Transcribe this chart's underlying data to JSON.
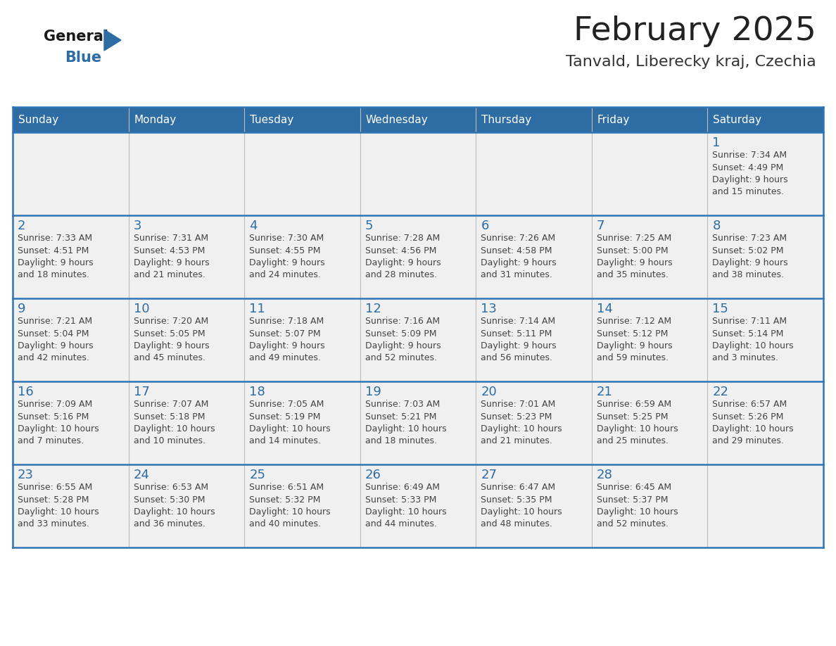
{
  "title": "February 2025",
  "subtitle": "Tanvald, Liberecky kraj, Czechia",
  "days_of_week": [
    "Sunday",
    "Monday",
    "Tuesday",
    "Wednesday",
    "Thursday",
    "Friday",
    "Saturday"
  ],
  "header_bg": "#2E6DA4",
  "header_text": "#FFFFFF",
  "cell_bg": "#F0F0F0",
  "day_number_color": "#2E6DA4",
  "text_color": "#444444",
  "line_color": "#2E75B6",
  "grid_line_color": "#BBBBBB",
  "logo_general_color": "#1a1a1a",
  "logo_blue_color": "#2E6DA4",
  "weeks": [
    {
      "days": [
        {
          "day": null,
          "info": null
        },
        {
          "day": null,
          "info": null
        },
        {
          "day": null,
          "info": null
        },
        {
          "day": null,
          "info": null
        },
        {
          "day": null,
          "info": null
        },
        {
          "day": null,
          "info": null
        },
        {
          "day": 1,
          "info": "Sunrise: 7:34 AM\nSunset: 4:49 PM\nDaylight: 9 hours\nand 15 minutes."
        }
      ]
    },
    {
      "days": [
        {
          "day": 2,
          "info": "Sunrise: 7:33 AM\nSunset: 4:51 PM\nDaylight: 9 hours\nand 18 minutes."
        },
        {
          "day": 3,
          "info": "Sunrise: 7:31 AM\nSunset: 4:53 PM\nDaylight: 9 hours\nand 21 minutes."
        },
        {
          "day": 4,
          "info": "Sunrise: 7:30 AM\nSunset: 4:55 PM\nDaylight: 9 hours\nand 24 minutes."
        },
        {
          "day": 5,
          "info": "Sunrise: 7:28 AM\nSunset: 4:56 PM\nDaylight: 9 hours\nand 28 minutes."
        },
        {
          "day": 6,
          "info": "Sunrise: 7:26 AM\nSunset: 4:58 PM\nDaylight: 9 hours\nand 31 minutes."
        },
        {
          "day": 7,
          "info": "Sunrise: 7:25 AM\nSunset: 5:00 PM\nDaylight: 9 hours\nand 35 minutes."
        },
        {
          "day": 8,
          "info": "Sunrise: 7:23 AM\nSunset: 5:02 PM\nDaylight: 9 hours\nand 38 minutes."
        }
      ]
    },
    {
      "days": [
        {
          "day": 9,
          "info": "Sunrise: 7:21 AM\nSunset: 5:04 PM\nDaylight: 9 hours\nand 42 minutes."
        },
        {
          "day": 10,
          "info": "Sunrise: 7:20 AM\nSunset: 5:05 PM\nDaylight: 9 hours\nand 45 minutes."
        },
        {
          "day": 11,
          "info": "Sunrise: 7:18 AM\nSunset: 5:07 PM\nDaylight: 9 hours\nand 49 minutes."
        },
        {
          "day": 12,
          "info": "Sunrise: 7:16 AM\nSunset: 5:09 PM\nDaylight: 9 hours\nand 52 minutes."
        },
        {
          "day": 13,
          "info": "Sunrise: 7:14 AM\nSunset: 5:11 PM\nDaylight: 9 hours\nand 56 minutes."
        },
        {
          "day": 14,
          "info": "Sunrise: 7:12 AM\nSunset: 5:12 PM\nDaylight: 9 hours\nand 59 minutes."
        },
        {
          "day": 15,
          "info": "Sunrise: 7:11 AM\nSunset: 5:14 PM\nDaylight: 10 hours\nand 3 minutes."
        }
      ]
    },
    {
      "days": [
        {
          "day": 16,
          "info": "Sunrise: 7:09 AM\nSunset: 5:16 PM\nDaylight: 10 hours\nand 7 minutes."
        },
        {
          "day": 17,
          "info": "Sunrise: 7:07 AM\nSunset: 5:18 PM\nDaylight: 10 hours\nand 10 minutes."
        },
        {
          "day": 18,
          "info": "Sunrise: 7:05 AM\nSunset: 5:19 PM\nDaylight: 10 hours\nand 14 minutes."
        },
        {
          "day": 19,
          "info": "Sunrise: 7:03 AM\nSunset: 5:21 PM\nDaylight: 10 hours\nand 18 minutes."
        },
        {
          "day": 20,
          "info": "Sunrise: 7:01 AM\nSunset: 5:23 PM\nDaylight: 10 hours\nand 21 minutes."
        },
        {
          "day": 21,
          "info": "Sunrise: 6:59 AM\nSunset: 5:25 PM\nDaylight: 10 hours\nand 25 minutes."
        },
        {
          "day": 22,
          "info": "Sunrise: 6:57 AM\nSunset: 5:26 PM\nDaylight: 10 hours\nand 29 minutes."
        }
      ]
    },
    {
      "days": [
        {
          "day": 23,
          "info": "Sunrise: 6:55 AM\nSunset: 5:28 PM\nDaylight: 10 hours\nand 33 minutes."
        },
        {
          "day": 24,
          "info": "Sunrise: 6:53 AM\nSunset: 5:30 PM\nDaylight: 10 hours\nand 36 minutes."
        },
        {
          "day": 25,
          "info": "Sunrise: 6:51 AM\nSunset: 5:32 PM\nDaylight: 10 hours\nand 40 minutes."
        },
        {
          "day": 26,
          "info": "Sunrise: 6:49 AM\nSunset: 5:33 PM\nDaylight: 10 hours\nand 44 minutes."
        },
        {
          "day": 27,
          "info": "Sunrise: 6:47 AM\nSunset: 5:35 PM\nDaylight: 10 hours\nand 48 minutes."
        },
        {
          "day": 28,
          "info": "Sunrise: 6:45 AM\nSunset: 5:37 PM\nDaylight: 10 hours\nand 52 minutes."
        },
        {
          "day": null,
          "info": null
        }
      ]
    }
  ]
}
